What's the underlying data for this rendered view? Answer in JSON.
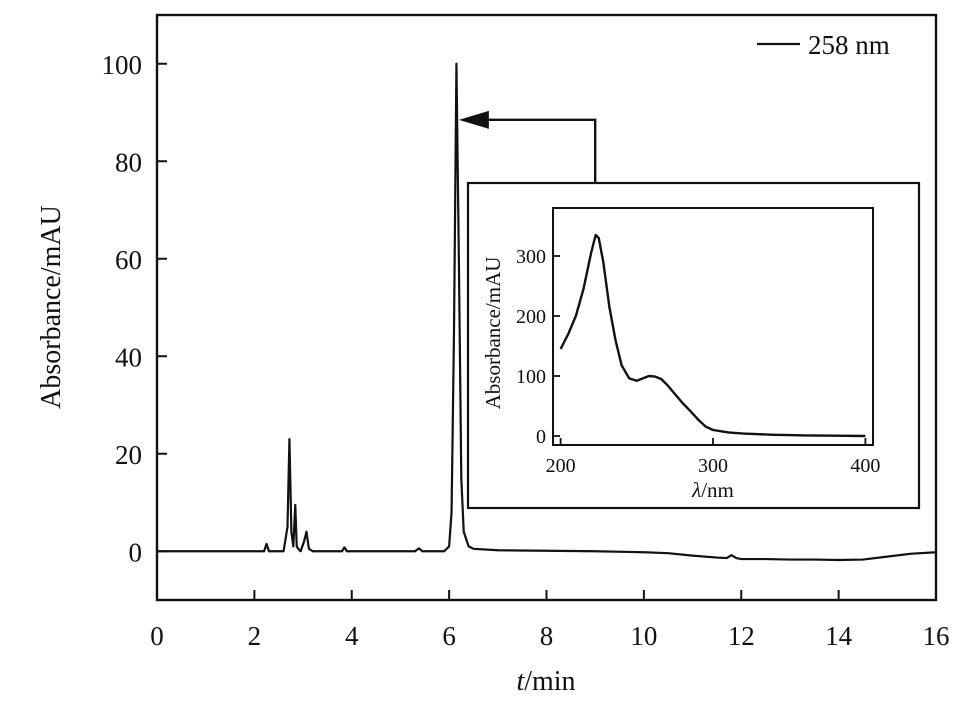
{
  "chart_data": [
    {
      "type": "line",
      "xlabel_var": "t",
      "xlabel_unit": "/min",
      "ylabel": "Absorbance/mAU",
      "xlim": [
        0,
        16
      ],
      "ylim": [
        -10,
        110
      ],
      "xticks": [
        0,
        2,
        4,
        6,
        8,
        10,
        12,
        14,
        16
      ],
      "yticks": [
        0,
        20,
        40,
        60,
        80,
        100
      ],
      "legend": {
        "position": "top-right",
        "entries": [
          "258 nm"
        ]
      },
      "series": [
        {
          "name": "258 nm",
          "color": "#111111",
          "x": [
            0,
            1,
            2,
            2.2,
            2.25,
            2.3,
            2.35,
            2.6,
            2.68,
            2.72,
            2.76,
            2.8,
            2.84,
            2.87,
            2.9,
            2.95,
            3.02,
            3.07,
            3.12,
            3.2,
            3.8,
            3.85,
            3.9,
            3.95,
            5.3,
            5.38,
            5.45,
            5.9,
            6.0,
            6.05,
            6.1,
            6.15,
            6.2,
            6.25,
            6.3,
            6.4,
            6.5,
            7,
            8,
            9,
            10,
            10.5,
            11,
            11.5,
            11.7,
            11.8,
            11.9,
            12,
            12.5,
            13,
            13.5,
            14,
            14.5,
            15,
            15.5,
            16
          ],
          "y": [
            0,
            0,
            0,
            0,
            1.5,
            0,
            0,
            0,
            5,
            23,
            4,
            1,
            9.5,
            1,
            0.5,
            0,
            2,
            4,
            0.5,
            0,
            0,
            0.8,
            0,
            0,
            0,
            0.6,
            0,
            0,
            1,
            8,
            45,
            100,
            60,
            15,
            4,
            1,
            0.5,
            0.2,
            0.1,
            0,
            -0.2,
            -0.4,
            -0.9,
            -1.3,
            -1.4,
            -0.8,
            -1.4,
            -1.6,
            -1.6,
            -1.7,
            -1.7,
            -1.8,
            -1.7,
            -1.1,
            -0.5,
            -0.2
          ]
        }
      ],
      "annotation": {
        "type": "arrow",
        "from_x": 9.0,
        "from_y": 73,
        "via_y": 88.5,
        "to_x": 6.2
      }
    },
    {
      "type": "line",
      "xlabel_var": "λ",
      "xlabel_unit": "/nm",
      "ylabel": "Absorbance/mAU",
      "xlim": [
        195,
        405
      ],
      "ylim": [
        -15,
        380
      ],
      "xticks": [
        200,
        300,
        400
      ],
      "yticks": [
        0,
        100,
        200,
        300
      ],
      "series": [
        {
          "name": "spectrum",
          "color": "#111111",
          "x": [
            200,
            205,
            210,
            215,
            220,
            223,
            225,
            228,
            232,
            236,
            240,
            245,
            250,
            255,
            258,
            262,
            266,
            270,
            275,
            280,
            285,
            290,
            295,
            300,
            305,
            310,
            320,
            330,
            340,
            350,
            360,
            380,
            400
          ],
          "y": [
            145,
            170,
            200,
            245,
            305,
            335,
            330,
            290,
            215,
            160,
            118,
            96,
            92,
            97,
            100,
            99,
            95,
            85,
            70,
            55,
            42,
            28,
            16,
            10,
            8,
            6,
            4,
            3,
            2,
            1.5,
            1,
            0.5,
            0
          ]
        }
      ]
    }
  ]
}
